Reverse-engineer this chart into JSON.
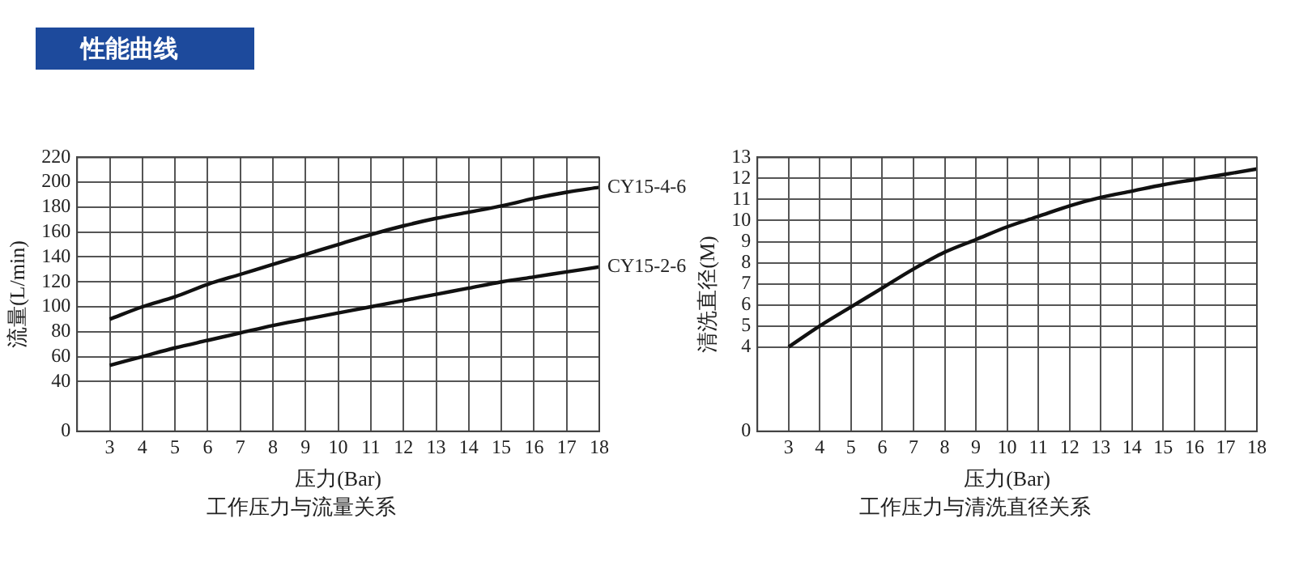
{
  "chart_data": [
    {
      "type": "other",
      "title": "性能曲线"
    },
    {
      "type": "line",
      "title": "工作压力与流量关系",
      "xlabel": "压力(Bar)",
      "ylabel": "流量(L/min)",
      "grid": true,
      "marker": "none",
      "xlim": [
        2,
        18
      ],
      "xticks": [
        3,
        4,
        5,
        6,
        7,
        8,
        9,
        10,
        11,
        12,
        13,
        14,
        15,
        16,
        17,
        18
      ],
      "ylim": [
        0,
        220
      ],
      "yticks": [
        0,
        40,
        60,
        80,
        100,
        120,
        140,
        160,
        180,
        200,
        220
      ],
      "x": [
        3,
        4,
        5,
        6,
        7,
        8,
        9,
        10,
        11,
        12,
        13,
        14,
        15,
        16,
        17,
        18
      ],
      "series": [
        {
          "name": "CY15-4-6",
          "color": "#111111",
          "values": [
            90,
            100,
            108,
            118,
            126,
            134,
            142,
            150,
            158,
            165,
            171,
            176,
            181,
            187,
            192,
            196
          ]
        },
        {
          "name": "CY15-2-6",
          "color": "#111111",
          "values": [
            53,
            60,
            67,
            73,
            79,
            85,
            90,
            95,
            100,
            105,
            110,
            115,
            120,
            124,
            128,
            132
          ]
        }
      ]
    },
    {
      "type": "line",
      "title": "工作压力与清洗直径关系",
      "xlabel": "压力(Bar)",
      "ylabel": "清洗直径(M)",
      "grid": true,
      "marker": "none",
      "xlim": [
        2,
        18
      ],
      "xticks": [
        3,
        4,
        5,
        6,
        7,
        8,
        9,
        10,
        11,
        12,
        13,
        14,
        15,
        16,
        17,
        18
      ],
      "ylim": [
        0,
        13
      ],
      "yticks": [
        0,
        4,
        5,
        6,
        7,
        8,
        9,
        10,
        11,
        12,
        13
      ],
      "x": [
        3,
        4,
        5,
        6,
        7,
        8,
        9,
        10,
        11,
        12,
        13,
        14,
        15,
        16,
        17,
        18
      ],
      "series": [
        {
          "color": "#111111",
          "values": [
            4,
            5.0,
            5.9,
            6.8,
            7.7,
            8.5,
            9.1,
            9.7,
            10.2,
            10.7,
            11.1,
            11.4,
            11.7,
            11.95,
            12.2,
            12.45
          ]
        }
      ]
    }
  ]
}
